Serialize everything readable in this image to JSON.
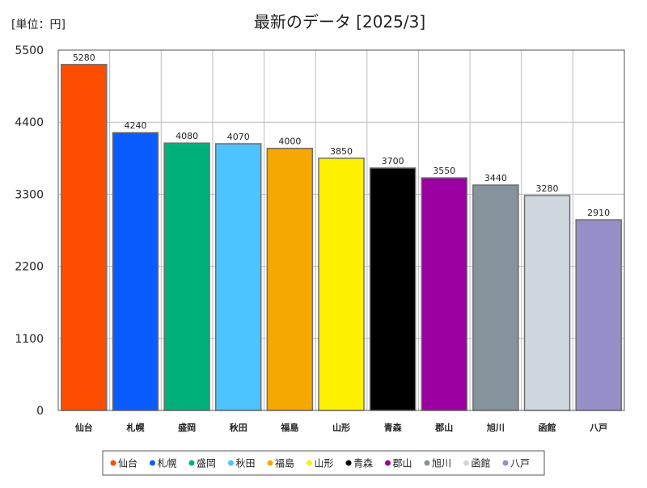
{
  "chart_data": {
    "type": "bar",
    "title": "最新のデータ [2025/3]",
    "unit_label": "[単位：円]",
    "xlabel": "",
    "ylabel": "",
    "ylim": [
      0,
      5500
    ],
    "yticks": [
      0,
      1100,
      2200,
      3300,
      4400,
      5500
    ],
    "grid": true,
    "legend_position": "bottom",
    "categories": [
      "仙台",
      "札幌",
      "盛岡",
      "秋田",
      "福島",
      "山形",
      "青森",
      "郡山",
      "旭川",
      "函館",
      "八戸"
    ],
    "values": [
      5280,
      4240,
      4080,
      4070,
      4000,
      3850,
      3700,
      3550,
      3440,
      3280,
      2910
    ],
    "colors": [
      "#ff4d00",
      "#0a5cff",
      "#00b07a",
      "#4dc3ff",
      "#f5a800",
      "#fff200",
      "#000000",
      "#9b00a0",
      "#86939c",
      "#d0d7df",
      "#968fc7"
    ]
  }
}
